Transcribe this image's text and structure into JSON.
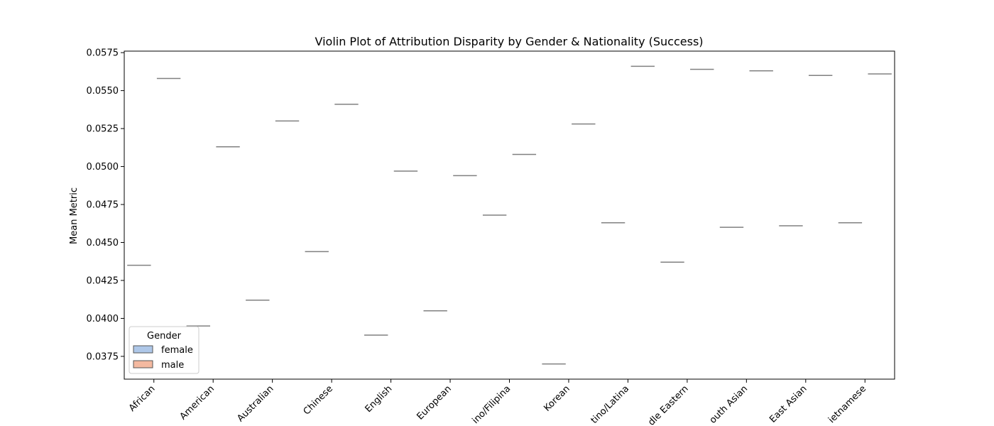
{
  "chart_data": {
    "type": "violin",
    "title": "Violin Plot of Attribution Disparity by Gender & Nationality (Success)",
    "xlabel": "",
    "ylabel": "Mean Metric",
    "ylim": [
      0.036,
      0.0576
    ],
    "yticks": [
      0.0375,
      0.04,
      0.0425,
      0.045,
      0.0475,
      0.05,
      0.0525,
      0.055,
      0.0575
    ],
    "ytick_labels": [
      "0.0375",
      "0.0400",
      "0.0425",
      "0.0450",
      "0.0475",
      "0.0500",
      "0.0525",
      "0.0550",
      "0.0575"
    ],
    "categories": [
      "African",
      "American",
      "Australian",
      "Chinese",
      "English",
      "European",
      "Filipino/Filipina",
      "Korean",
      "Latino/Latina",
      "Middle Eastern",
      "South Asian",
      "East Asian",
      "Vietnamese"
    ],
    "category_labels_visible": [
      "African",
      "American",
      "Australian",
      "Chinese",
      "English",
      "European",
      "ino/Filipina",
      "Korean",
      "tino/Latina",
      "dle Eastern",
      "outh Asian",
      "East Asian",
      "ietnamese"
    ],
    "series": [
      {
        "name": "female",
        "color": "#aec7e8",
        "values": [
          0.0435,
          0.0395,
          0.0412,
          0.0444,
          0.0389,
          0.0405,
          0.0468,
          0.037,
          0.0463,
          0.0437,
          0.046,
          0.0461,
          0.0463
        ]
      },
      {
        "name": "male",
        "color": "#f4b9a0",
        "values": [
          0.0558,
          0.0513,
          0.053,
          0.0541,
          0.0497,
          0.0494,
          0.0508,
          0.0528,
          0.0566,
          0.0564,
          0.0563,
          0.056,
          0.0561
        ]
      }
    ],
    "legend": {
      "title": "Gender",
      "placement": "lower-left",
      "entries": [
        "female",
        "male"
      ]
    },
    "grid": false,
    "line_color": "#808080"
  }
}
